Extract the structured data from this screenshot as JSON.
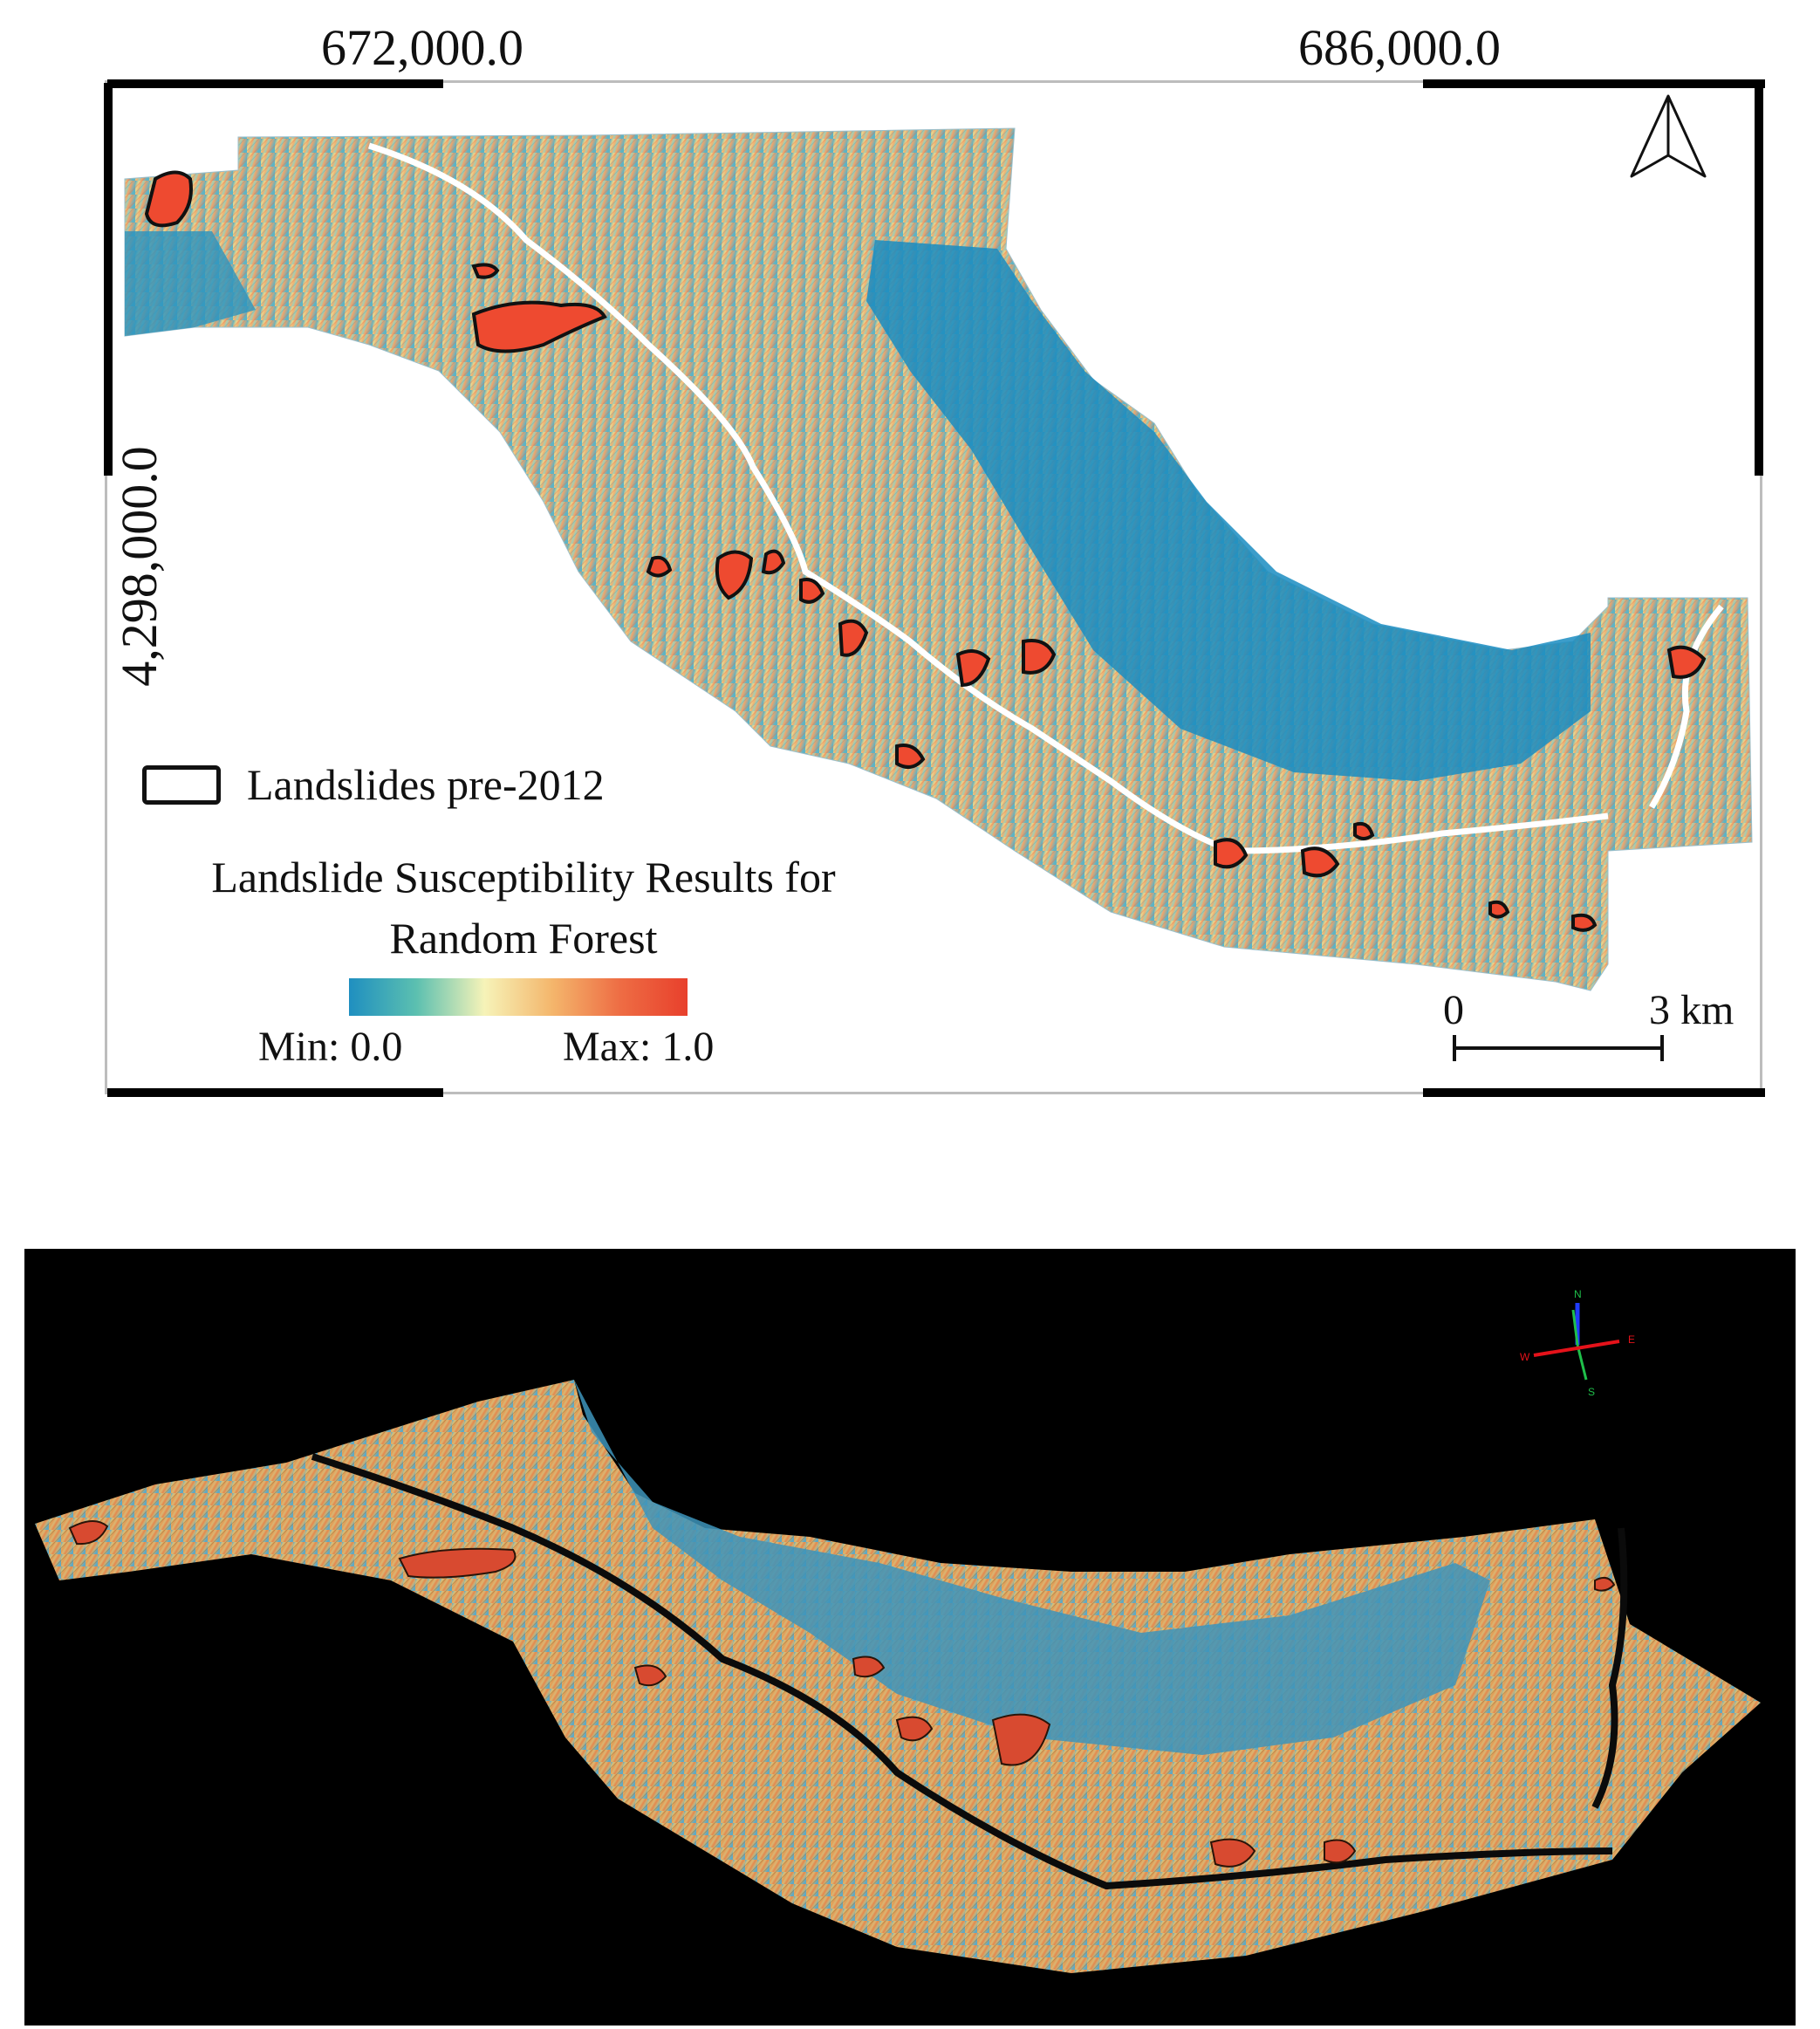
{
  "map2d": {
    "coords": {
      "x_left": "672,000.0",
      "x_right": "686,000.0",
      "y": "4,298,000.0"
    },
    "legend": {
      "landslides_label": "Landslides pre-2012",
      "title_line1": "Landslide Susceptibility Results for",
      "title_line2": "Random Forest",
      "min_label": "Min: 0.0",
      "max_label": "Max: 1.0",
      "ramp_colors": [
        "#1f8fc0",
        "#5cc0b0",
        "#f6f3b8",
        "#f4b66c",
        "#ee6d44",
        "#e8402c"
      ]
    },
    "scale": {
      "zero": "0",
      "end": "3 km"
    },
    "north_icon": "north-arrow-icon"
  },
  "view3d": {
    "compass": {
      "n": "N",
      "e": "E",
      "s": "S",
      "w": "W"
    },
    "background": "#000000"
  }
}
